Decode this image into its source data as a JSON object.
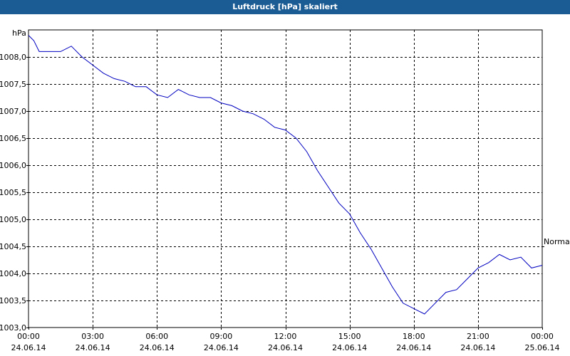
{
  "window": {
    "title": "Luftdruck [hPa] skaliert"
  },
  "colors": {
    "title_bar": "#1c5c94",
    "series": "#0000c0",
    "grid": "#000000",
    "background": "#ffffff"
  },
  "chart_data": {
    "type": "line",
    "title": "Luftdruck [hPa] skaliert",
    "ylabel": "hPa",
    "xlabel": "",
    "ylim": [
      1003.0,
      1008.5
    ],
    "xlim_hours": [
      0,
      24
    ],
    "grid": true,
    "y_ticks": [
      "1003,0",
      "1003,5",
      "1004,0",
      "1004,5",
      "1005,0",
      "1005,5",
      "1006,0",
      "1006,5",
      "1007,0",
      "1007,5",
      "1008,0"
    ],
    "y_tick_values": [
      1003.0,
      1003.5,
      1004.0,
      1004.5,
      1005.0,
      1005.5,
      1006.0,
      1006.5,
      1007.0,
      1007.5,
      1008.0
    ],
    "x_ticks": [
      {
        "time": "00:00",
        "date": "24.06.14"
      },
      {
        "time": "03:00",
        "date": "24.06.14"
      },
      {
        "time": "06:00",
        "date": "24.06.14"
      },
      {
        "time": "09:00",
        "date": "24.06.14"
      },
      {
        "time": "12:00",
        "date": "24.06.14"
      },
      {
        "time": "15:00",
        "date": "24.06.14"
      },
      {
        "time": "18:00",
        "date": "24.06.14"
      },
      {
        "time": "21:00",
        "date": "24.06.14"
      },
      {
        "time": "00:00",
        "date": "25.06.14"
      }
    ],
    "reference_line": {
      "label": "Normal",
      "value": 1004.5
    },
    "series": [
      {
        "x_hours": [
          0.0,
          0.25,
          0.5,
          0.75,
          1.0,
          1.5,
          2.0,
          2.5,
          3.0,
          3.5,
          4.0,
          4.5,
          5.0,
          5.5,
          6.0,
          6.5,
          7.0,
          7.5,
          8.0,
          8.5,
          9.0,
          9.5,
          10.0,
          10.5,
          11.0,
          11.5,
          12.0,
          12.5,
          13.0,
          13.5,
          14.0,
          14.5,
          15.0,
          15.5,
          16.0,
          16.5,
          17.0,
          17.5,
          18.0,
          18.5,
          19.0,
          19.5,
          20.0,
          20.5,
          21.0,
          21.5,
          22.0,
          22.5,
          23.0,
          23.5,
          24.0
        ],
        "values": [
          1008.4,
          1008.3,
          1008.1,
          1008.1,
          1008.1,
          1008.1,
          1008.2,
          1008.0,
          1007.85,
          1007.7,
          1007.6,
          1007.55,
          1007.45,
          1007.45,
          1007.3,
          1007.25,
          1007.4,
          1007.3,
          1007.25,
          1007.25,
          1007.15,
          1007.1,
          1007.0,
          1006.95,
          1006.85,
          1006.7,
          1006.65,
          1006.5,
          1006.25,
          1005.9,
          1005.6,
          1005.3,
          1005.1,
          1004.75,
          1004.45,
          1004.1,
          1003.75,
          1003.45,
          1003.35,
          1003.25,
          1003.45,
          1003.65,
          1003.7,
          1003.9,
          1004.1,
          1004.2,
          1004.35,
          1004.25,
          1004.3,
          1004.1,
          1004.15
        ]
      }
    ]
  }
}
